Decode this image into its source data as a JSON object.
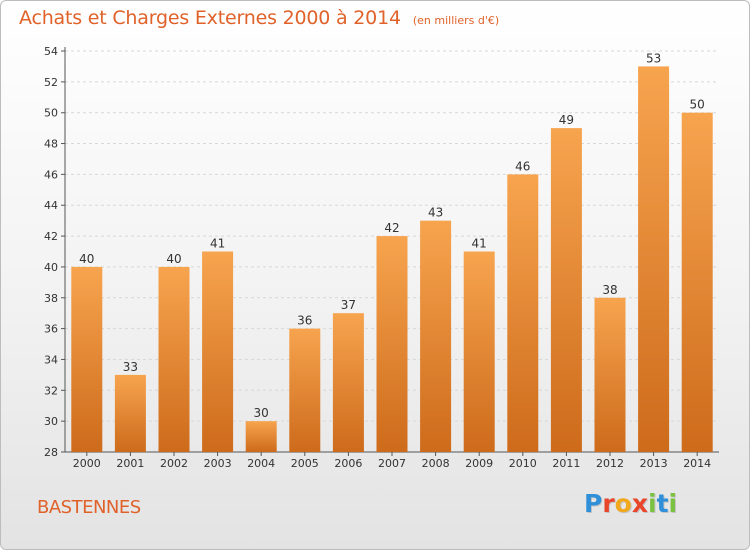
{
  "header": {
    "title": "Achats et Charges Externes 2000 à 2014",
    "unit": "(en milliers d'€)"
  },
  "footer": {
    "commune": "BASTENNES",
    "brand_letters": [
      {
        "ch": "P",
        "color": "#2f8fd8"
      },
      {
        "ch": "r",
        "color": "#e8452b"
      },
      {
        "ch": "o",
        "color": "#f2a81d"
      },
      {
        "ch": "x",
        "color": "#e8452b"
      },
      {
        "ch": "i",
        "color": "#7cc242"
      },
      {
        "ch": "t",
        "color": "#2f8fd8"
      },
      {
        "ch": "i",
        "color": "#7cc242"
      }
    ]
  },
  "colors": {
    "title": "#e0622a",
    "bar_top": "#f7a44f",
    "bar_bottom": "#cd6b1b",
    "grid": "#d8d8d8",
    "axis": "#555555"
  },
  "chart_data": {
    "type": "bar",
    "title": "Achats et Charges Externes 2000 à 2014",
    "subtitle": "(en milliers d'€)",
    "categories": [
      "2000",
      "2001",
      "2002",
      "2003",
      "2004",
      "2005",
      "2006",
      "2007",
      "2008",
      "2009",
      "2010",
      "2011",
      "2012",
      "2013",
      "2014"
    ],
    "values": [
      40,
      33,
      40,
      41,
      30,
      36,
      37,
      42,
      43,
      41,
      46,
      49,
      38,
      53,
      50
    ],
    "xlabel": "",
    "ylabel": "",
    "ylim": [
      28,
      54
    ],
    "yticks": [
      28,
      30,
      32,
      34,
      36,
      38,
      40,
      42,
      44,
      46,
      48,
      50,
      52,
      54
    ],
    "grid": true,
    "data_labels": true
  }
}
